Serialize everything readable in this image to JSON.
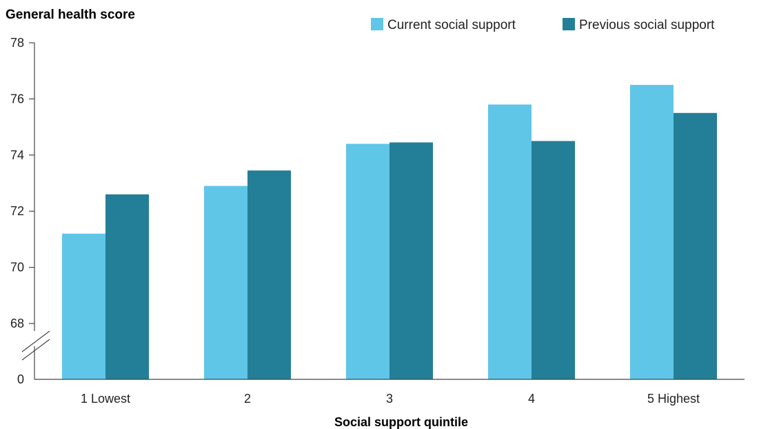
{
  "chart_data": {
    "type": "bar",
    "ylabel": "General health score",
    "xlabel": "Social support quintile",
    "categories": [
      "1 Lowest",
      "2",
      "3",
      "4",
      "5 Highest"
    ],
    "series": [
      {
        "name": "Current social support",
        "color": "#5fc6e8",
        "values": [
          71.2,
          72.9,
          74.4,
          75.8,
          76.5
        ]
      },
      {
        "name": "Previous social support",
        "color": "#237f97",
        "values": [
          72.6,
          73.45,
          74.45,
          74.5,
          75.5
        ]
      }
    ],
    "ylim": [
      68,
      78
    ],
    "ytick_values": [
      68,
      70,
      72,
      74,
      76,
      78
    ],
    "ytick_labels": [
      "68",
      "70",
      "72",
      "74",
      "76",
      "78"
    ],
    "axis_break": true,
    "axis_zero_label": "0",
    "legend_position": "top-right",
    "grid": false
  }
}
